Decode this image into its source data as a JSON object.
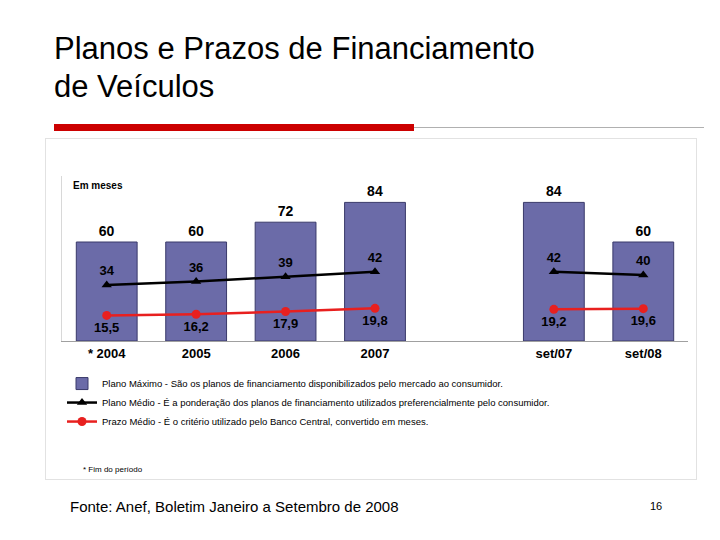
{
  "slide": {
    "source": "Fonte: Anef, Boletim Janeiro a Setembro de 2008",
    "page_number": "16"
  },
  "chart_data": {
    "type": "bar",
    "title": "Planos e Prazos de Financiamento\nde Veículos",
    "ylabel": "Em meses",
    "note": "* Fim do período",
    "categories": [
      "* 2004",
      "2005",
      "2006",
      "2007",
      null,
      "set/07",
      "set/08"
    ],
    "ylim": [
      0,
      100
    ],
    "tick_labels": "x",
    "grid": false,
    "legend": "bottom left",
    "data_labels": true,
    "series": [
      {
        "name": "Plano Máximo - São os planos de financiamento disponibilizados pelo mercado ao consumidor.",
        "type": "bar",
        "color": "#6b6ba8",
        "values": [
          60,
          60,
          72,
          84,
          null,
          84,
          60
        ]
      },
      {
        "name": "Plano Médio - É a ponderação dos planos de financiamento utilizados preferencialmente pelo consumidor.",
        "type": "line",
        "color": "#000000",
        "marker": "triangle-up",
        "line_style": "solid",
        "values": [
          34,
          36,
          39,
          42,
          null,
          42,
          40
        ]
      },
      {
        "name": "Prazo Médio - É o critério utilizado pelo Banco Central, convertido em meses.",
        "type": "line",
        "color": "#e8201f",
        "marker": "circle",
        "line_style": "solid",
        "values": [
          15.5,
          16.2,
          17.9,
          19.8,
          null,
          19.2,
          19.6
        ],
        "value_labels": [
          "15,5",
          "16,2",
          "17,9",
          "19,8",
          null,
          "19,2",
          "19,6"
        ]
      }
    ]
  }
}
